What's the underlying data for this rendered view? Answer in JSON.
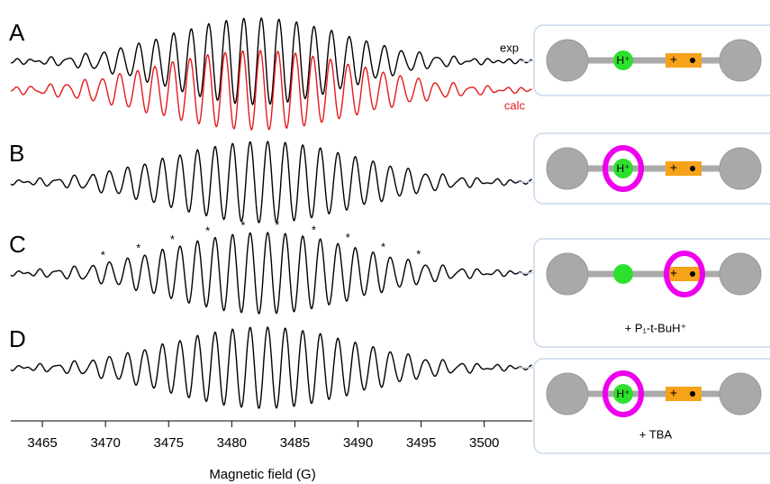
{
  "chart_data": {
    "type": "spectrum",
    "xlabel": "Magnetic field (G)",
    "xlim": [
      3462.5,
      3503.8
    ],
    "xticks": [
      3465,
      3470,
      3475,
      3480,
      3485,
      3490,
      3495,
      3500
    ],
    "panels": [
      {
        "label": "A",
        "traces": [
          {
            "name": "exp",
            "color": "#000000"
          },
          {
            "name": "calc",
            "color": "#e41a1c"
          }
        ],
        "proton": "H⁺",
        "charge": "+"
      },
      {
        "label": "B",
        "proton": "H⁺",
        "charge": "+"
      },
      {
        "label": "C",
        "stars": {
          "label": "*",
          "x": [
            3469.8,
            3472.6,
            3475.3,
            3478.1,
            3480.9,
            3483.6,
            3486.5,
            3489.2,
            3492.0,
            3494.8
          ]
        },
        "charge": "+",
        "note": "+ P₁-t-BuH⁺"
      },
      {
        "label": "D",
        "proton": "H⁺",
        "charge": "+",
        "note": "+ TBA"
      }
    ]
  }
}
